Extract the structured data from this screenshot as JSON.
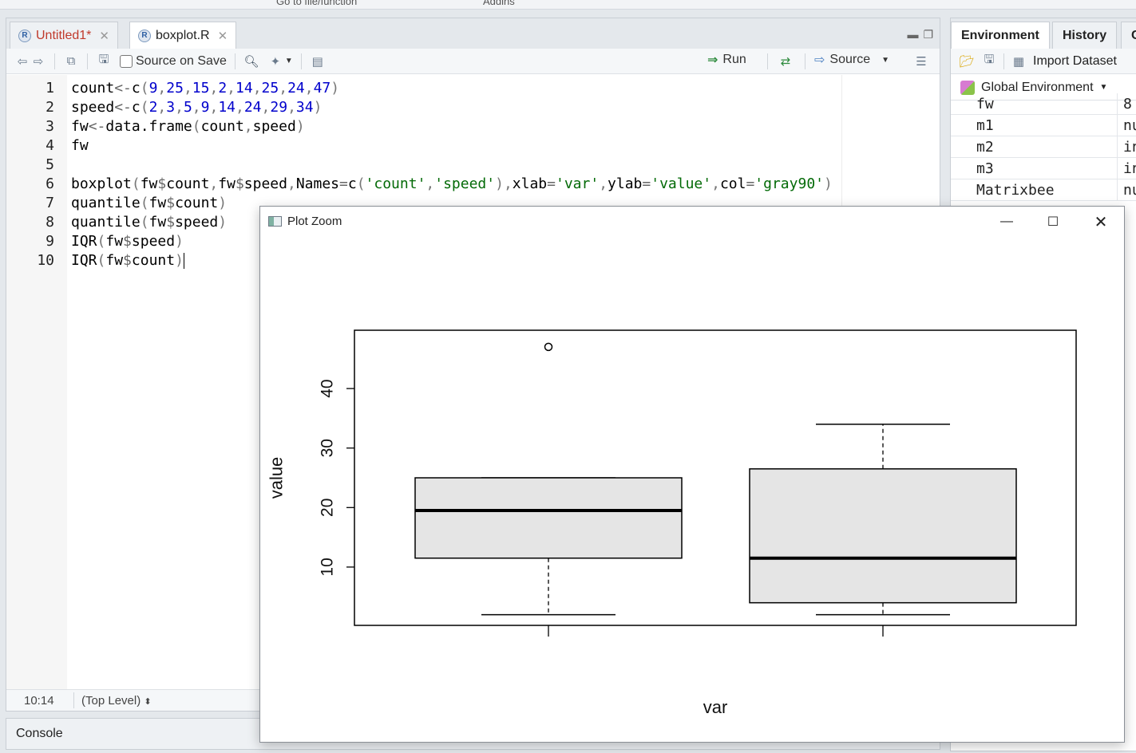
{
  "top_toolbar": {
    "goto_placeholder": "Go to file/function",
    "addins_label": "Addins"
  },
  "editor": {
    "tabs": [
      {
        "label": "Untitled1*",
        "modified": true
      },
      {
        "label": "boxplot.R",
        "modified": false
      }
    ],
    "toolbar": {
      "source_on_save_label": "Source on Save",
      "run_label": "Run",
      "source_label": "Source"
    },
    "line_numbers": [
      "1",
      "2",
      "3",
      "4",
      "5",
      "6",
      "7",
      "8",
      "9",
      "10"
    ],
    "lines": [
      "count<-c(9,25,15,2,14,25,24,47)",
      "speed<-c(2,3,5,9,14,24,29,34)",
      "fw<-data.frame(count,speed)",
      "fw",
      "",
      "boxplot(fw$count,fw$speed,Names=c('count','speed'),xlab='var',ylab='value',col='gray90')",
      "quantile(fw$count)",
      "quantile(fw$speed)",
      "IQR(fw$speed)",
      "IQR(fw$count)"
    ],
    "status": {
      "cursor_position": "10:14",
      "scope": "(Top Level)"
    }
  },
  "console": {
    "title": "Console"
  },
  "environment": {
    "tabs": [
      "Environment",
      "History",
      "C"
    ],
    "import_label": "Import Dataset",
    "scope_label": "Global Environment",
    "rows": [
      {
        "name": "fw",
        "value": "8"
      },
      {
        "name": "m1",
        "value": "nu"
      },
      {
        "name": "m2",
        "value": "in"
      },
      {
        "name": "m3",
        "value": "in"
      },
      {
        "name": "Matrixbee",
        "value": "nu"
      }
    ]
  },
  "plot_window": {
    "title": "Plot Zoom",
    "chart_data": {
      "type": "boxplot",
      "xlabel": "var",
      "ylabel": "value",
      "y_ticks": [
        10,
        20,
        30,
        40
      ],
      "ylim": [
        0.2,
        49.8
      ],
      "fill_color": "#e5e5e5",
      "boxes": [
        {
          "min": 2,
          "q1": 11.5,
          "median": 19.5,
          "q3": 25,
          "max": 25,
          "lower_whisker": 2,
          "upper_whisker": 25,
          "outliers": [
            47
          ]
        },
        {
          "min": 2,
          "q1": 4,
          "median": 11.5,
          "q3": 26.5,
          "max": 34,
          "lower_whisker": 2,
          "upper_whisker": 34,
          "outliers": []
        }
      ]
    }
  }
}
